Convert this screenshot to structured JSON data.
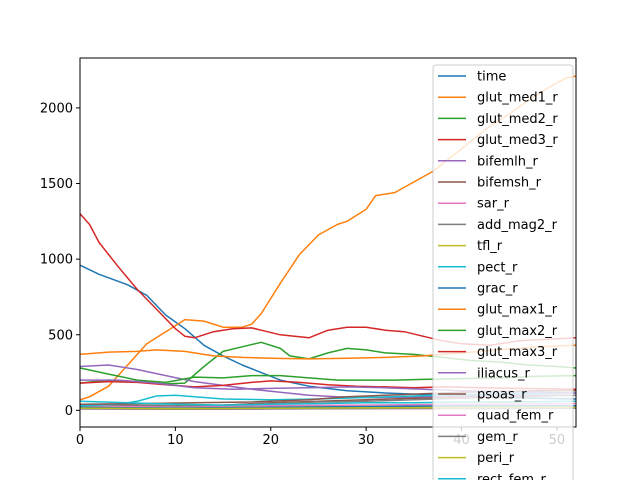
{
  "chart_data": {
    "type": "line",
    "xlim": [
      0,
      52
    ],
    "ylim": [
      -110,
      2330
    ],
    "x_ticks": [
      0,
      10,
      20,
      30,
      40,
      50
    ],
    "y_ticks": [
      0,
      500,
      1000,
      1500,
      2000
    ],
    "legend_position": "top-right",
    "grid": false,
    "series": [
      {
        "name": "time",
        "color": "#1f77b4",
        "points": [
          [
            0,
            960
          ],
          [
            2,
            900
          ],
          [
            5,
            830
          ],
          [
            7,
            760
          ],
          [
            9,
            630
          ],
          [
            11,
            540
          ],
          [
            13,
            430
          ],
          [
            15,
            360
          ],
          [
            17,
            300
          ],
          [
            19,
            250
          ],
          [
            21,
            200
          ],
          [
            24,
            160
          ],
          [
            28,
            130
          ],
          [
            32,
            115
          ],
          [
            36,
            105
          ],
          [
            40,
            95
          ],
          [
            44,
            85
          ],
          [
            48,
            80
          ],
          [
            52,
            75
          ]
        ]
      },
      {
        "name": "glut_med1_r",
        "color": "#ff7f0e",
        "points": [
          [
            0,
            70
          ],
          [
            1,
            90
          ],
          [
            3,
            160
          ],
          [
            5,
            300
          ],
          [
            7,
            440
          ],
          [
            9,
            520
          ],
          [
            11,
            600
          ],
          [
            13,
            590
          ],
          [
            15,
            550
          ],
          [
            17,
            550
          ],
          [
            18,
            570
          ],
          [
            19,
            640
          ],
          [
            21,
            840
          ],
          [
            23,
            1030
          ],
          [
            25,
            1160
          ],
          [
            27,
            1230
          ],
          [
            28,
            1250
          ],
          [
            30,
            1330
          ],
          [
            31,
            1420
          ],
          [
            33,
            1440
          ],
          [
            35,
            1510
          ],
          [
            37,
            1580
          ],
          [
            39,
            1680
          ],
          [
            41,
            1780
          ],
          [
            43,
            1880
          ],
          [
            45,
            1960
          ],
          [
            47,
            2050
          ],
          [
            49,
            2130
          ],
          [
            51,
            2200
          ],
          [
            52,
            2210
          ]
        ]
      },
      {
        "name": "glut_med2_r",
        "color": "#2ca02c",
        "points": [
          [
            0,
            180
          ],
          [
            3,
            200
          ],
          [
            6,
            190
          ],
          [
            9,
            175
          ],
          [
            11,
            180
          ],
          [
            13,
            290
          ],
          [
            15,
            390
          ],
          [
            17,
            420
          ],
          [
            19,
            450
          ],
          [
            21,
            410
          ],
          [
            22,
            360
          ],
          [
            24,
            340
          ],
          [
            26,
            380
          ],
          [
            28,
            410
          ],
          [
            30,
            400
          ],
          [
            32,
            380
          ],
          [
            35,
            370
          ],
          [
            38,
            350
          ],
          [
            41,
            330
          ],
          [
            44,
            320
          ],
          [
            47,
            300
          ],
          [
            50,
            290
          ],
          [
            52,
            280
          ]
        ]
      },
      {
        "name": "glut_med3_r",
        "color": "#d62728",
        "points": [
          [
            0,
            1300
          ],
          [
            1,
            1230
          ],
          [
            2,
            1110
          ],
          [
            4,
            950
          ],
          [
            6,
            800
          ],
          [
            8,
            670
          ],
          [
            10,
            540
          ],
          [
            11,
            490
          ],
          [
            12,
            480
          ],
          [
            14,
            520
          ],
          [
            16,
            540
          ],
          [
            18,
            545
          ],
          [
            19,
            530
          ],
          [
            21,
            500
          ],
          [
            24,
            480
          ],
          [
            26,
            530
          ],
          [
            28,
            550
          ],
          [
            30,
            550
          ],
          [
            32,
            530
          ],
          [
            34,
            520
          ],
          [
            36,
            490
          ],
          [
            38,
            460
          ],
          [
            40,
            440
          ],
          [
            43,
            430
          ],
          [
            46,
            460
          ],
          [
            49,
            470
          ],
          [
            52,
            480
          ]
        ]
      },
      {
        "name": "bifemlh_r",
        "color": "#9467bd",
        "points": [
          [
            0,
            290
          ],
          [
            3,
            300
          ],
          [
            6,
            270
          ],
          [
            9,
            230
          ],
          [
            12,
            190
          ],
          [
            15,
            165
          ],
          [
            18,
            140
          ],
          [
            21,
            120
          ],
          [
            24,
            100
          ],
          [
            27,
            90
          ],
          [
            30,
            85
          ],
          [
            33,
            85
          ],
          [
            36,
            90
          ],
          [
            40,
            95
          ],
          [
            44,
            100
          ],
          [
            48,
            100
          ],
          [
            52,
            100
          ]
        ]
      },
      {
        "name": "bifemsh_r",
        "color": "#8c564b",
        "points": [
          [
            0,
            40
          ],
          [
            5,
            35
          ],
          [
            10,
            30
          ],
          [
            15,
            35
          ],
          [
            20,
            50
          ],
          [
            25,
            60
          ],
          [
            30,
            70
          ],
          [
            35,
            80
          ],
          [
            40,
            85
          ],
          [
            45,
            90
          ],
          [
            50,
            100
          ],
          [
            52,
            100
          ]
        ]
      },
      {
        "name": "sar_r",
        "color": "#e377c2",
        "points": [
          [
            0,
            30
          ],
          [
            10,
            25
          ],
          [
            20,
            30
          ],
          [
            30,
            35
          ],
          [
            40,
            40
          ],
          [
            52,
            45
          ]
        ]
      },
      {
        "name": "add_mag2_r",
        "color": "#7f7f7f",
        "points": [
          [
            0,
            40
          ],
          [
            5,
            35
          ],
          [
            10,
            30
          ],
          [
            15,
            35
          ],
          [
            20,
            45
          ],
          [
            25,
            55
          ],
          [
            30,
            60
          ],
          [
            35,
            70
          ],
          [
            40,
            80
          ],
          [
            45,
            90
          ],
          [
            52,
            100
          ]
        ]
      },
      {
        "name": "tfl_r",
        "color": "#bcbd22",
        "points": [
          [
            0,
            20
          ],
          [
            10,
            15
          ],
          [
            20,
            20
          ],
          [
            30,
            25
          ],
          [
            40,
            25
          ],
          [
            52,
            30
          ]
        ]
      },
      {
        "name": "pect_r",
        "color": "#17becf",
        "points": [
          [
            0,
            30
          ],
          [
            4,
            40
          ],
          [
            6,
            60
          ],
          [
            8,
            95
          ],
          [
            10,
            100
          ],
          [
            12,
            90
          ],
          [
            15,
            75
          ],
          [
            20,
            70
          ],
          [
            25,
            75
          ],
          [
            30,
            85
          ],
          [
            35,
            95
          ],
          [
            40,
            105
          ],
          [
            45,
            110
          ],
          [
            52,
            115
          ]
        ]
      },
      {
        "name": "grac_r",
        "color": "#1f77b4",
        "points": [
          [
            0,
            20
          ],
          [
            10,
            15
          ],
          [
            20,
            20
          ],
          [
            30,
            25
          ],
          [
            40,
            30
          ],
          [
            52,
            30
          ]
        ]
      },
      {
        "name": "glut_max1_r",
        "color": "#ff7f0e",
        "points": [
          [
            0,
            370
          ],
          [
            3,
            385
          ],
          [
            6,
            390
          ],
          [
            8,
            400
          ],
          [
            11,
            390
          ],
          [
            14,
            360
          ],
          [
            17,
            350
          ],
          [
            20,
            345
          ],
          [
            24,
            340
          ],
          [
            28,
            345
          ],
          [
            32,
            350
          ],
          [
            36,
            360
          ],
          [
            40,
            380
          ],
          [
            44,
            400
          ],
          [
            48,
            420
          ],
          [
            52,
            430
          ]
        ]
      },
      {
        "name": "glut_max2_r",
        "color": "#2ca02c",
        "points": [
          [
            0,
            280
          ],
          [
            3,
            240
          ],
          [
            6,
            200
          ],
          [
            9,
            185
          ],
          [
            12,
            220
          ],
          [
            15,
            215
          ],
          [
            18,
            230
          ],
          [
            21,
            230
          ],
          [
            24,
            215
          ],
          [
            27,
            200
          ],
          [
            30,
            200
          ],
          [
            33,
            200
          ],
          [
            36,
            205
          ],
          [
            40,
            210
          ],
          [
            44,
            215
          ],
          [
            48,
            225
          ],
          [
            52,
            230
          ]
        ]
      },
      {
        "name": "glut_max3_r",
        "color": "#d62728",
        "points": [
          [
            0,
            180
          ],
          [
            3,
            190
          ],
          [
            6,
            185
          ],
          [
            9,
            170
          ],
          [
            12,
            155
          ],
          [
            15,
            165
          ],
          [
            18,
            185
          ],
          [
            20,
            195
          ],
          [
            23,
            185
          ],
          [
            26,
            170
          ],
          [
            29,
            160
          ],
          [
            32,
            155
          ],
          [
            35,
            150
          ],
          [
            38,
            155
          ],
          [
            42,
            150
          ],
          [
            46,
            145
          ],
          [
            52,
            140
          ]
        ]
      },
      {
        "name": "iliacus_r",
        "color": "#9467bd",
        "points": [
          [
            0,
            200
          ],
          [
            4,
            200
          ],
          [
            8,
            180
          ],
          [
            12,
            150
          ],
          [
            16,
            140
          ],
          [
            20,
            145
          ],
          [
            24,
            150
          ],
          [
            28,
            155
          ],
          [
            32,
            150
          ],
          [
            36,
            140
          ],
          [
            40,
            130
          ],
          [
            44,
            125
          ],
          [
            48,
            120
          ],
          [
            52,
            115
          ]
        ]
      },
      {
        "name": "psoas_r",
        "color": "#8c564b",
        "points": [
          [
            0,
            40
          ],
          [
            6,
            45
          ],
          [
            12,
            50
          ],
          [
            18,
            55
          ],
          [
            24,
            70
          ],
          [
            28,
            90
          ],
          [
            32,
            100
          ],
          [
            36,
            110
          ],
          [
            40,
            120
          ],
          [
            44,
            125
          ],
          [
            48,
            130
          ],
          [
            52,
            130
          ]
        ]
      },
      {
        "name": "quad_fem_r",
        "color": "#e377c2",
        "points": [
          [
            0,
            10
          ],
          [
            10,
            8
          ],
          [
            20,
            10
          ],
          [
            30,
            12
          ],
          [
            40,
            12
          ],
          [
            52,
            15
          ]
        ]
      },
      {
        "name": "gem_r",
        "color": "#7f7f7f",
        "points": [
          [
            0,
            10
          ],
          [
            10,
            8
          ],
          [
            20,
            10
          ],
          [
            30,
            12
          ],
          [
            40,
            14
          ],
          [
            52,
            15
          ]
        ]
      },
      {
        "name": "peri_r",
        "color": "#bcbd22",
        "points": [
          [
            0,
            15
          ],
          [
            10,
            12
          ],
          [
            20,
            14
          ],
          [
            30,
            16
          ],
          [
            40,
            18
          ],
          [
            52,
            20
          ]
        ]
      },
      {
        "name": "rect_fem_r",
        "color": "#17becf",
        "points": [
          [
            0,
            60
          ],
          [
            5,
            50
          ],
          [
            10,
            40
          ],
          [
            15,
            35
          ],
          [
            20,
            40
          ],
          [
            25,
            45
          ],
          [
            30,
            50
          ],
          [
            35,
            50
          ],
          [
            40,
            55
          ],
          [
            45,
            55
          ],
          [
            52,
            60
          ]
        ]
      }
    ]
  }
}
